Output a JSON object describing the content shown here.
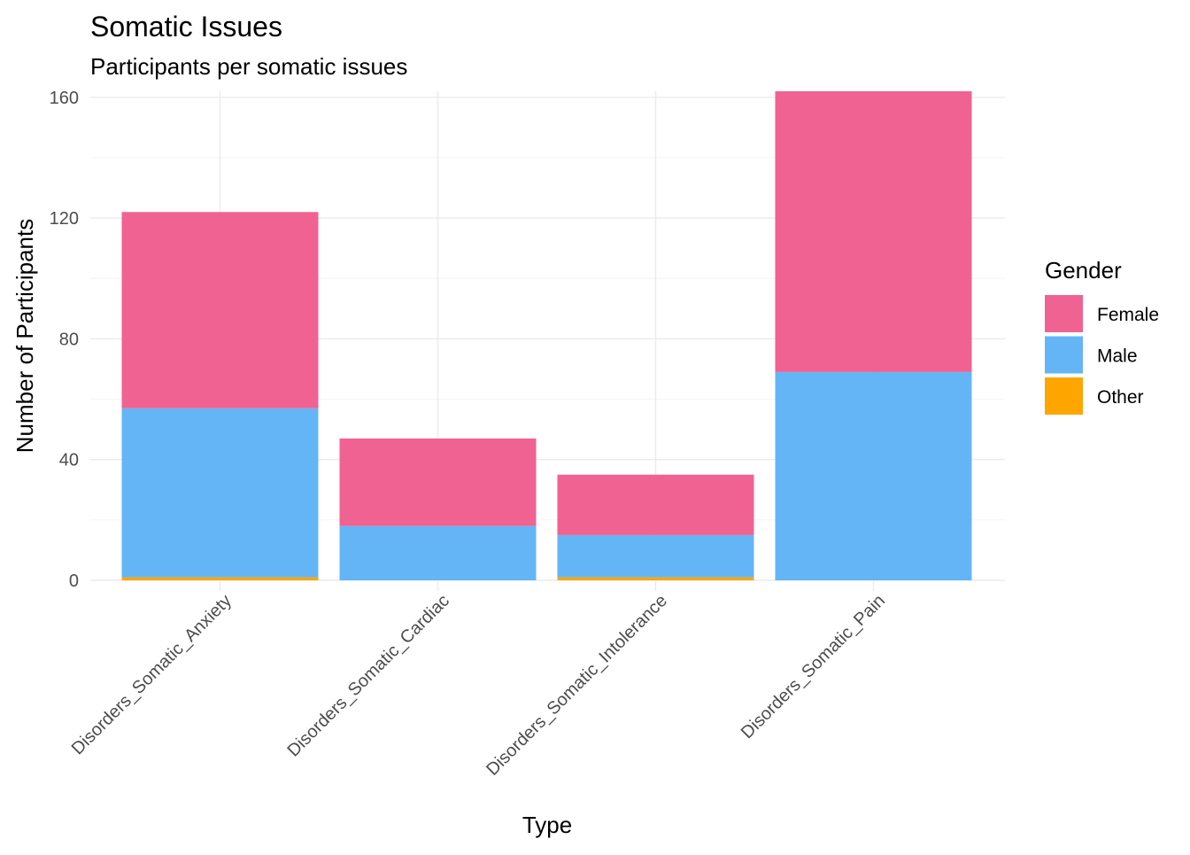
{
  "chart_data": {
    "type": "bar",
    "stacked": true,
    "title": "Somatic Issues",
    "subtitle": "Participants per somatic issues",
    "xlabel": "Type",
    "ylabel": "Number of Participants",
    "categories": [
      "Disorders_Somatic_Anxiety",
      "Disorders_Somatic_Cardiac",
      "Disorders_Somatic_Intolerance",
      "Disorders_Somatic_Pain"
    ],
    "series": [
      {
        "name": "Other",
        "color": "#FFA500",
        "values": [
          1,
          0,
          1,
          0
        ]
      },
      {
        "name": "Male",
        "color": "#64B5F6",
        "values": [
          56,
          18,
          14,
          69
        ]
      },
      {
        "name": "Female",
        "color": "#F06292",
        "values": [
          65,
          29,
          20,
          93
        ]
      }
    ],
    "ylim": [
      0,
      162
    ],
    "yticks": [
      0,
      40,
      80,
      120,
      160
    ],
    "grid": true,
    "legend": {
      "title": "Gender",
      "placement": "right",
      "order": [
        "Female",
        "Male",
        "Other"
      ]
    }
  }
}
